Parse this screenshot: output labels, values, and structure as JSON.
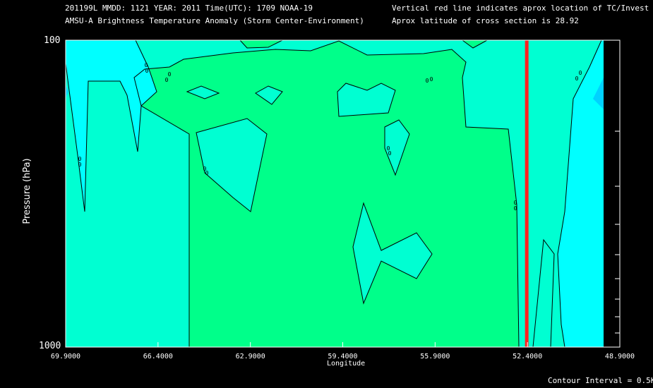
{
  "header": {
    "line1_left": "201199L  MMDD: 1121 YEAR: 2011 Time(UTC): 1709 NOAA-19",
    "line2_left": "AMSU-A Brightness Temperature Anomaly (Storm Center-Environment)",
    "line1_right": "Vertical red line indicates aprox location of TC/Invest",
    "line2_right": "Aprox latitude of cross section is 28.92"
  },
  "footer": {
    "contour_interval": "Contour Interval = 0.5K"
  },
  "contour_labels": [
    "0",
    "0",
    "0",
    "0",
    "0",
    "0",
    "0",
    "0",
    "0",
    "0"
  ],
  "colors": {
    "cyan": "#00ffff",
    "aqua": "#00ffd2",
    "mint": "#00ffb4",
    "green": "#00ff8a",
    "blue": "#00d2ff",
    "tc_line": "#ff2020"
  },
  "chart_data": {
    "type": "heatmap",
    "title": "AMSU-A Brightness Temperature Anomaly (Storm Center-Environment)",
    "xlabel": "Longitude",
    "ylabel": "Pressure (hPa)",
    "x_ticks": [
      "69.9000",
      "66.4000",
      "62.9000",
      "59.4000",
      "55.9000",
      "52.4000",
      "48.9000"
    ],
    "x_tick_values": [
      69.9,
      66.4,
      62.9,
      59.4,
      55.9,
      52.4,
      48.9
    ],
    "xlim": [
      69.9,
      48.9
    ],
    "y_ticks": [
      "100",
      "1000"
    ],
    "ylim": [
      1000,
      100
    ],
    "y_scale": "log",
    "tc_longitude": 52.4,
    "cross_section_latitude": 28.92,
    "contour_interval_K": 0.5
  }
}
